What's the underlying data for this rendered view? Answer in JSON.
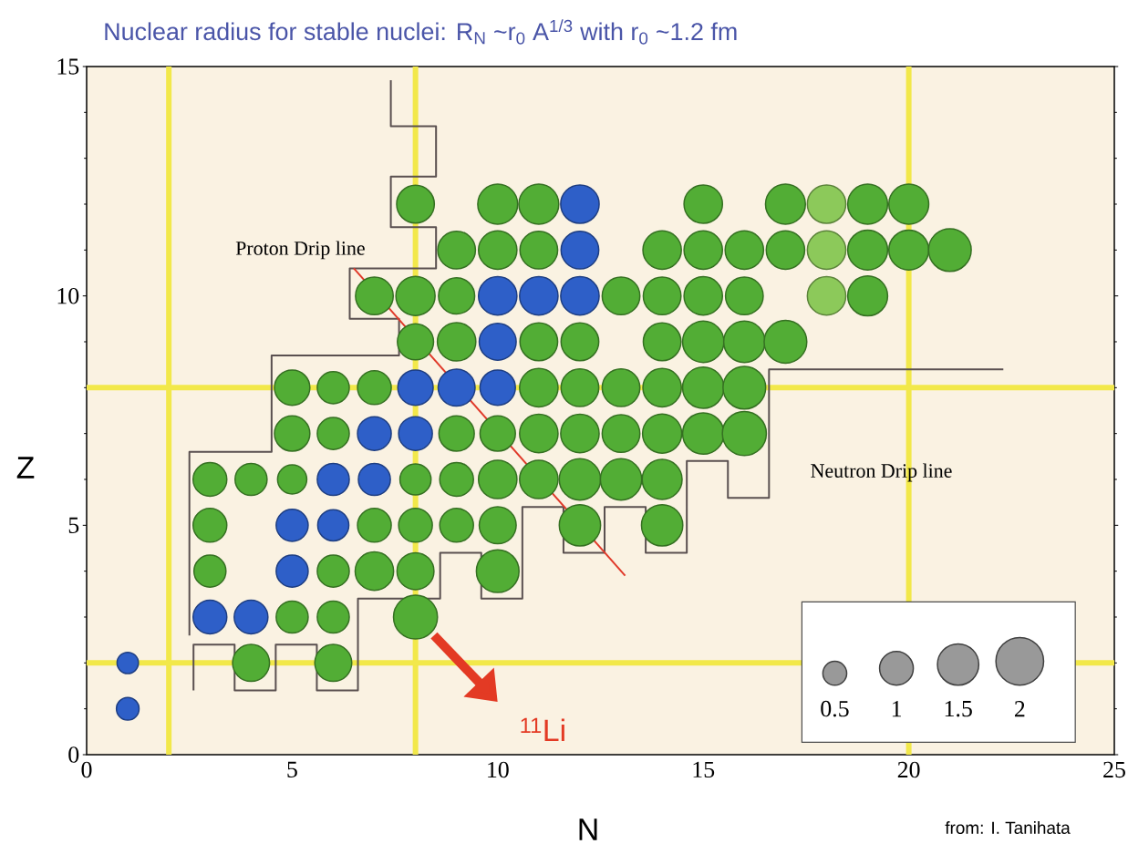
{
  "chart_data": {
    "type": "bubble",
    "title": "Nuclear radius for stable nuclei: R$_{N}$ ~r$_{0}$ A$^{1/3}$ with r$_{0}$ ~1.2 fm",
    "xlabel": "N",
    "ylabel": "Z",
    "xlim": [
      0,
      25
    ],
    "ylim": [
      0,
      15
    ],
    "xticks": [
      0,
      5,
      10,
      15,
      20,
      25
    ],
    "yticks": [
      0,
      5,
      10,
      15
    ],
    "series": [
      {
        "type": "line",
        "color": "#5a5050",
        "x": [
          7.4,
          7.4,
          8.5,
          8.5,
          7.4,
          7.4,
          8.5,
          8.5,
          6.4,
          6.4,
          7.6,
          7.6,
          4.5,
          4.5,
          2.5,
          2.5
        ],
        "values": [
          14.7,
          13.7,
          13.7,
          12.6,
          12.6,
          11.5,
          11.5,
          10.6,
          10.6,
          9.5,
          9.5,
          8.7,
          8.7,
          6.6,
          6.6,
          2.6
        ]
      },
      {
        "type": "line",
        "color": "#5a5050",
        "x": [
          2.6,
          2.6,
          3.6,
          3.6,
          4.6,
          4.6,
          5.6,
          5.6,
          6.6,
          6.6,
          8.6,
          8.6,
          9.6,
          9.6,
          10.6,
          10.6,
          11.6,
          11.6,
          12.6,
          12.6,
          13.6,
          13.6,
          14.6,
          14.6,
          15.6,
          15.6,
          16.6,
          16.6,
          22.3
        ],
        "values": [
          1.4,
          2.4,
          2.4,
          1.4,
          1.4,
          2.4,
          2.4,
          1.4,
          1.4,
          3.4,
          3.4,
          4.4,
          4.4,
          3.4,
          3.4,
          5.4,
          5.4,
          4.4,
          4.4,
          5.4,
          5.4,
          4.4,
          4.4,
          6.4,
          6.4,
          5.6,
          5.6,
          8.4,
          8.4
        ]
      },
      {
        "color": "#52ad35",
        "x": [
          4,
          6,
          5,
          6,
          8,
          3,
          6,
          7,
          8,
          10,
          3,
          7,
          8,
          9,
          10,
          12,
          14,
          3,
          4,
          5,
          8,
          9,
          10,
          11,
          12,
          13,
          14,
          5,
          6,
          9,
          10,
          11,
          12,
          13,
          14,
          15,
          16,
          5,
          6,
          7,
          11,
          12,
          13,
          14,
          15,
          16,
          8,
          9,
          11,
          12,
          14,
          15,
          16,
          17,
          7,
          8,
          9,
          13,
          14,
          15,
          16,
          19,
          9,
          10,
          11,
          14,
          15,
          16,
          17,
          19,
          20,
          21,
          8,
          10,
          11,
          15,
          17,
          19,
          20
        ],
        "values": [
          2,
          2,
          3,
          3,
          3,
          4,
          4,
          4,
          4,
          4,
          5,
          5,
          5,
          5,
          5,
          5,
          5,
          6,
          6,
          6,
          6,
          6,
          6,
          6,
          6,
          6,
          6,
          7,
          7,
          7,
          7,
          7,
          7,
          7,
          7,
          7,
          7,
          8,
          8,
          8,
          8,
          8,
          8,
          8,
          8,
          8,
          9,
          9,
          9,
          9,
          9,
          9,
          9,
          9,
          10,
          10,
          10,
          10,
          10,
          10,
          10,
          10,
          11,
          11,
          11,
          11,
          11,
          11,
          11,
          11,
          11,
          11,
          12,
          12,
          12,
          12,
          12,
          12,
          12
        ],
        "sizes": [
          1.2,
          1.2,
          0.9,
          0.9,
          1.7,
          0.9,
          0.9,
          1.3,
          1.2,
          1.6,
          1.0,
          1.0,
          1.0,
          1.0,
          1.2,
          1.5,
          1.5,
          1.0,
          0.9,
          0.75,
          0.85,
          1.0,
          1.3,
          1.3,
          1.5,
          1.5,
          1.4,
          1.1,
          0.9,
          1.1,
          1.1,
          1.3,
          1.3,
          1.25,
          1.35,
          1.5,
          1.7,
          1.1,
          0.9,
          1.0,
          1.3,
          1.25,
          1.25,
          1.3,
          1.5,
          1.6,
          1.15,
          1.3,
          1.25,
          1.25,
          1.25,
          1.5,
          1.5,
          1.6,
          1.25,
          1.35,
          1.15,
          1.25,
          1.25,
          1.3,
          1.25,
          1.4,
          1.25,
          1.3,
          1.25,
          1.3,
          1.3,
          1.3,
          1.3,
          1.4,
          1.4,
          1.6,
          1.25,
          1.4,
          1.4,
          1.3,
          1.4,
          1.4,
          1.4
        ]
      },
      {
        "color": "#2e5fc8",
        "x": [
          1,
          1,
          3,
          4,
          5,
          5,
          6,
          6,
          7,
          7,
          8,
          8,
          9,
          10,
          10,
          10,
          11,
          12,
          12,
          12
        ],
        "values": [
          1,
          2,
          3,
          3,
          4,
          5,
          5,
          6,
          6,
          7,
          7,
          8,
          8,
          8,
          9,
          10,
          10,
          10,
          11,
          12
        ],
        "sizes": [
          0.45,
          0.4,
          1.0,
          1.0,
          0.9,
          0.9,
          0.85,
          0.9,
          0.9,
          1.0,
          1.0,
          1.1,
          1.2,
          1.1,
          1.2,
          1.3,
          1.3,
          1.3,
          1.25,
          1.3
        ]
      },
      {
        "color": "#8cc95a",
        "x": [
          18,
          18,
          18
        ],
        "values": [
          10,
          11,
          12
        ],
        "sizes": [
          1.3,
          1.3,
          1.3
        ]
      },
      {
        "type": "line",
        "color": "#e03a2a",
        "x": [
          6.5,
          13.1
        ],
        "values": [
          10.6,
          3.9
        ]
      }
    ],
    "size_legend": [
      0.5,
      1,
      1.5,
      2
    ],
    "ref_lines": [
      {
        "axis": "x",
        "value": 2,
        "color": "#f2e84a"
      },
      {
        "axis": "x",
        "value": 8,
        "color": "#f2e84a"
      },
      {
        "axis": "x",
        "value": 20,
        "color": "#f2e84a"
      },
      {
        "axis": "y",
        "value": 2,
        "color": "#f2e84a"
      },
      {
        "axis": "y",
        "value": 8,
        "color": "#f2e84a"
      }
    ],
    "annotations": [
      "Proton Drip line",
      "Neutron Drip line",
      "$^{11}$Li",
      "from: I. Tanihata"
    ]
  }
}
